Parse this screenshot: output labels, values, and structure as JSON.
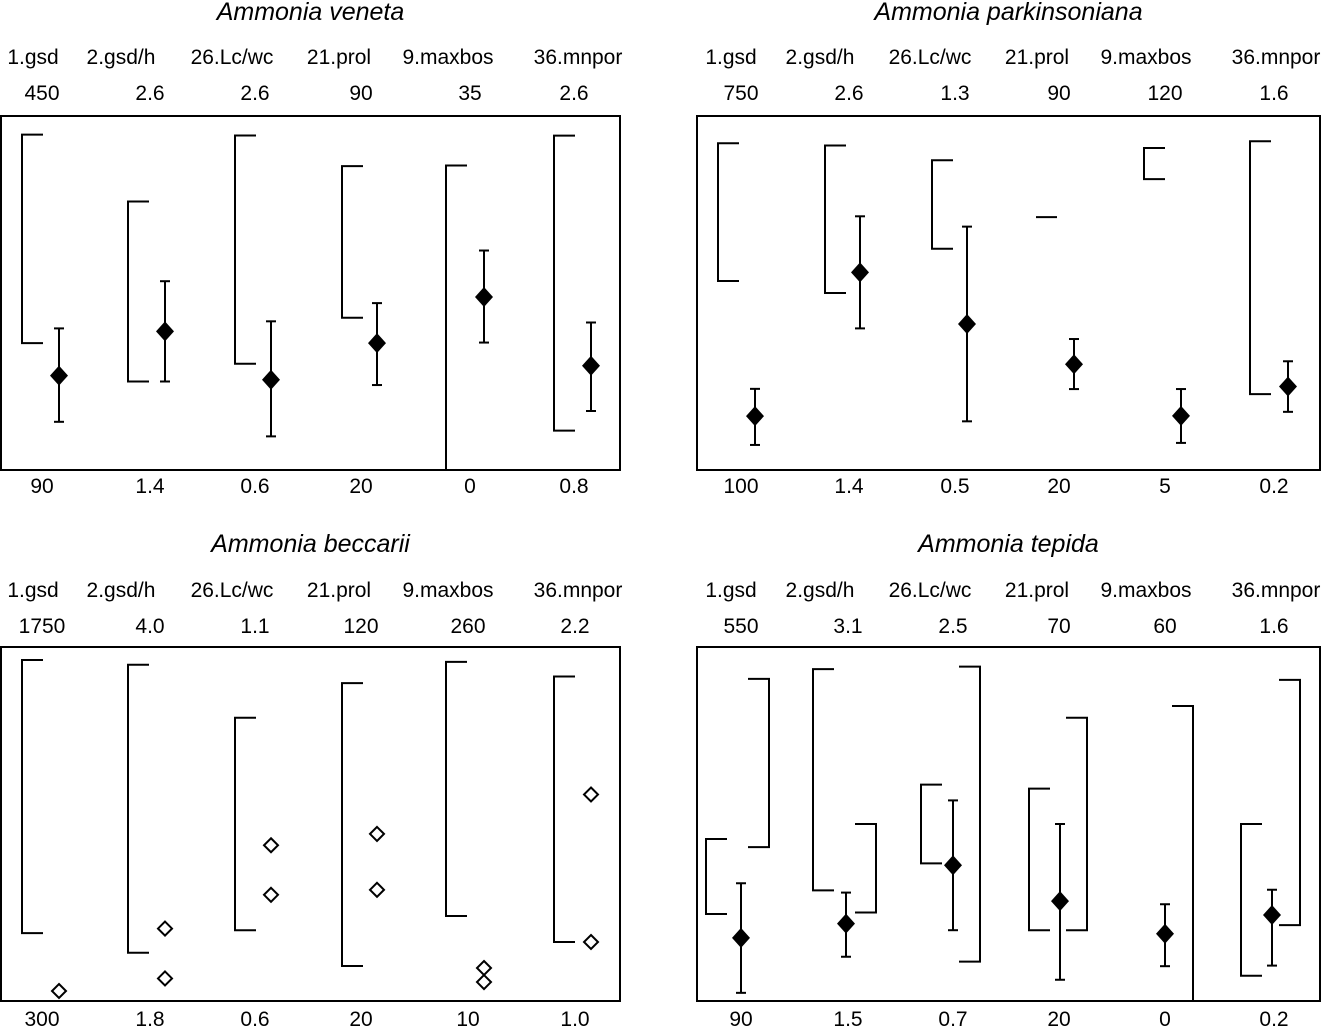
{
  "chart_data": [
    {
      "type": "range-errorbar",
      "title": "Ammonia veneta",
      "marker": "filled-diamond",
      "variables": [
        "1.gsd",
        "2.gsd/h",
        "26.Lc/wc",
        "21.prol",
        "9.maxbos",
        "36.mnpor"
      ],
      "max_labels": [
        "450",
        "2.6",
        "2.6",
        "90",
        "35",
        "2.6"
      ],
      "min_labels": [
        "90",
        "1.4",
        "0.6",
        "20",
        "0",
        "0.8"
      ],
      "columns": [
        {
          "min": 90,
          "max": 450,
          "brackets": [
            {
              "side": "left",
              "low": 219,
              "high": 431
            }
          ],
          "mean": 186,
          "err_low": 139,
          "err_high": 234
        },
        {
          "min": 1.4,
          "max": 2.6,
          "brackets": [
            {
              "side": "left",
              "low": 1.7,
              "high": 2.31
            }
          ],
          "mean": 1.87,
          "err_low": 1.7,
          "err_high": 2.04
        },
        {
          "min": 0.6,
          "max": 2.6,
          "brackets": [
            {
              "side": "left",
              "low": 1.2,
              "high": 2.49
            }
          ],
          "mean": 1.11,
          "err_low": 0.79,
          "err_high": 1.44
        },
        {
          "min": 20,
          "max": 90,
          "brackets": [
            {
              "side": "left",
              "low": 50.1,
              "high": 80.1
            }
          ],
          "mean": 45.1,
          "err_low": 36.8,
          "err_high": 53.0
        },
        {
          "min": 0,
          "max": 35,
          "brackets": [
            {
              "side": "left",
              "low": 0,
              "high": 30.1
            }
          ],
          "mean": 17.1,
          "err_low": 12.6,
          "err_high": 21.7
        },
        {
          "min": 0.8,
          "max": 2.6,
          "brackets": [
            {
              "side": "left",
              "low": 1.0,
              "high": 2.5
            }
          ],
          "mean": 1.33,
          "err_low": 1.1,
          "err_high": 1.55
        }
      ]
    },
    {
      "type": "range-errorbar",
      "title": "Ammonia parkinsoniana",
      "marker": "filled-diamond",
      "variables": [
        "1.gsd",
        "2.gsd/h",
        "26.Lc/wc",
        "21.prol",
        "9.maxbos",
        "36.mnpor"
      ],
      "max_labels": [
        "750",
        "2.6",
        "1.3",
        "90",
        "120",
        "1.6"
      ],
      "min_labels": [
        "100",
        "1.4",
        "0.5",
        "20",
        "5",
        "0.2"
      ],
      "columns": [
        {
          "min": 100,
          "max": 750,
          "brackets": [
            {
              "side": "left",
              "low": 447,
              "high": 700
            }
          ],
          "mean": 199,
          "err_low": 146,
          "err_high": 249
        },
        {
          "min": 1.4,
          "max": 2.6,
          "brackets": [
            {
              "side": "left",
              "low": 2.0,
              "high": 2.5
            }
          ],
          "mean": 2.07,
          "err_low": 1.88,
          "err_high": 2.26
        },
        {
          "min": 0.5,
          "max": 1.3,
          "brackets": [
            {
              "side": "left",
              "low": 1.0,
              "high": 1.2
            }
          ],
          "mean": 0.83,
          "err_low": 0.61,
          "err_high": 1.05
        },
        {
          "min": 20,
          "max": 90,
          "brackets": [
            {
              "side": "left",
              "low": 70,
              "high": 70
            }
          ],
          "mean": 40.9,
          "err_low": 36.0,
          "err_high": 45.9
        },
        {
          "min": 5,
          "max": 120,
          "brackets": [
            {
              "side": "left",
              "low": 99.5,
              "high": 109.6
            }
          ],
          "mean": 22.6,
          "err_low": 13.8,
          "err_high": 31.3
        },
        {
          "min": 0.2,
          "max": 1.6,
          "brackets": [
            {
              "side": "left",
              "low": 0.5,
              "high": 1.5
            }
          ],
          "mean": 0.53,
          "err_low": 0.43,
          "err_high": 0.63
        }
      ]
    },
    {
      "type": "range-points",
      "title": "Ammonia beccarii",
      "marker": "open-diamond",
      "variables": [
        "1.gsd",
        "2.gsd/h",
        "26.Lc/wc",
        "21.prol",
        "9.maxbos",
        "36.mnpor"
      ],
      "max_labels": [
        "1750",
        "4.0",
        "1.1",
        "120",
        "260",
        "2.2"
      ],
      "min_labels": [
        "300",
        "1.8",
        "0.6",
        "20",
        "10",
        "1.0"
      ],
      "columns": [
        {
          "min": 300,
          "max": 1750,
          "brackets": [
            {
              "side": "left",
              "low": 578,
              "high": 1697
            }
          ],
          "points": [
            341
          ]
        },
        {
          "min": 1.8,
          "max": 4.0,
          "brackets": [
            {
              "side": "left",
              "low": 2.1,
              "high": 3.89
            }
          ],
          "points": [
            2.25,
            1.94
          ]
        },
        {
          "min": 0.6,
          "max": 1.1,
          "brackets": [
            {
              "side": "left",
              "low": 0.7,
              "high": 1.0
            }
          ],
          "points": [
            0.82,
            0.75
          ]
        },
        {
          "min": 20,
          "max": 120,
          "brackets": [
            {
              "side": "left",
              "low": 29.9,
              "high": 109.8
            }
          ],
          "points": [
            67.2,
            51.4
          ]
        },
        {
          "min": 10,
          "max": 260,
          "brackets": [
            {
              "side": "left",
              "low": 70.0,
              "high": 249.5
            }
          ],
          "points": [
            33.3,
            23.4
          ]
        },
        {
          "min": 1.0,
          "max": 2.2,
          "brackets": [
            {
              "side": "left",
              "low": 1.2,
              "high": 2.1
            }
          ],
          "points": [
            1.7,
            1.2
          ]
        }
      ]
    },
    {
      "type": "range-errorbar",
      "title": "Ammonia tepida",
      "marker": "filled-diamond",
      "variables": [
        "1.gsd",
        "2.gsd/h",
        "26.Lc/wc",
        "21.prol",
        "9.maxbos",
        "36.mnpor"
      ],
      "max_labels": [
        "550",
        "3.1",
        "2.5",
        "70",
        "60",
        "1.6"
      ],
      "min_labels": [
        "90",
        "1.5",
        "0.7",
        "20",
        "0",
        "0.2"
      ],
      "columns": [
        {
          "min": 90,
          "max": 550,
          "brackets": [
            {
              "side": "left",
              "low": 203,
              "high": 300.5
            },
            {
              "side": "right",
              "low": 290,
              "high": 508.6
            }
          ],
          "mean": 172,
          "err_low": 100.6,
          "err_high": 243
        },
        {
          "min": 1.5,
          "max": 3.1,
          "brackets": [
            {
              "side": "left",
              "low": 2.0,
              "high": 3.0
            },
            {
              "side": "right",
              "low": 1.9,
              "high": 2.3
            }
          ],
          "mean": 1.85,
          "err_low": 1.7,
          "err_high": 1.99
        },
        {
          "min": 0.7,
          "max": 2.5,
          "brackets": [
            {
              "side": "left",
              "low": 1.4,
              "high": 1.8
            },
            {
              "side": "right",
              "low": 0.9,
              "high": 2.4
            }
          ],
          "mean": 1.39,
          "err_low": 1.06,
          "err_high": 1.72
        },
        {
          "min": 20,
          "max": 70,
          "brackets": [
            {
              "side": "left",
              "low": 30.0,
              "high": 50.0
            },
            {
              "side": "right",
              "low": 30.0,
              "high": 60.0
            }
          ],
          "mean": 34.1,
          "err_low": 23.0,
          "err_high": 45.0
        },
        {
          "min": 0,
          "max": 60,
          "brackets": [
            {
              "side": "right",
              "low": 0,
              "high": 50.0
            }
          ],
          "mean": 11.4,
          "err_low": 5.9,
          "err_high": 16.4
        },
        {
          "min": 0.2,
          "max": 1.6,
          "brackets": [
            {
              "side": "left",
              "low": 0.3,
              "high": 0.9
            },
            {
              "side": "right",
              "low": 0.5,
              "high": 1.47
            }
          ],
          "mean": 0.54,
          "err_low": 0.34,
          "err_high": 0.64
        }
      ]
    }
  ]
}
